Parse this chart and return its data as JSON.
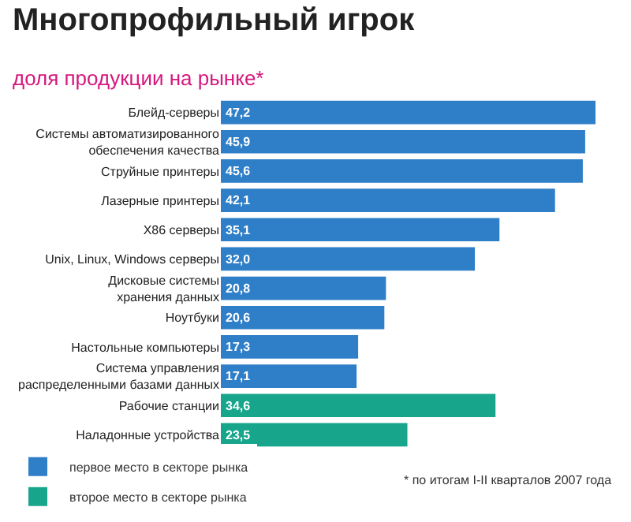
{
  "chart_data": {
    "type": "bar",
    "orientation": "horizontal",
    "title": "Многопрофильный игрок",
    "subtitle": "доля продукции на рынке*",
    "categories": [
      "Блейд-серверы",
      "Системы автоматизированного\nобеспечения качества",
      "Струйные принтеры",
      "Лазерные принтеры",
      "X86 серверы",
      "Unix, Linux, Windows серверы",
      "Дисковые системы\nхранения данных",
      "Ноутбуки",
      "Настольные компьютеры",
      "Система управления\nраспределенными базами данных",
      "Рабочие станции",
      "Наладонные устройства"
    ],
    "series": [
      {
        "name": "первое место в секторе рынка",
        "color": "#2f7fc8",
        "values": [
          47.2,
          45.9,
          45.6,
          42.1,
          35.1,
          32.0,
          20.8,
          20.6,
          17.3,
          17.1,
          null,
          null
        ],
        "value_labels": [
          "47,2",
          "45,9",
          "45,6",
          "42,1",
          "35,1",
          "32,0",
          "20,8",
          "20,6",
          "17,3",
          "17,1",
          null,
          null
        ]
      },
      {
        "name": "второе место в секторе рынка",
        "color": "#17a58c",
        "values": [
          null,
          null,
          null,
          null,
          null,
          null,
          null,
          null,
          null,
          null,
          34.6,
          23.5
        ],
        "value_labels": [
          null,
          null,
          null,
          null,
          null,
          null,
          null,
          null,
          null,
          null,
          "34,6",
          "23,5"
        ]
      }
    ],
    "tick_labels": "y",
    "legend": "bottom left",
    "annotations": [
      "* по итогам I-II кварталов 2007 года"
    ]
  }
}
